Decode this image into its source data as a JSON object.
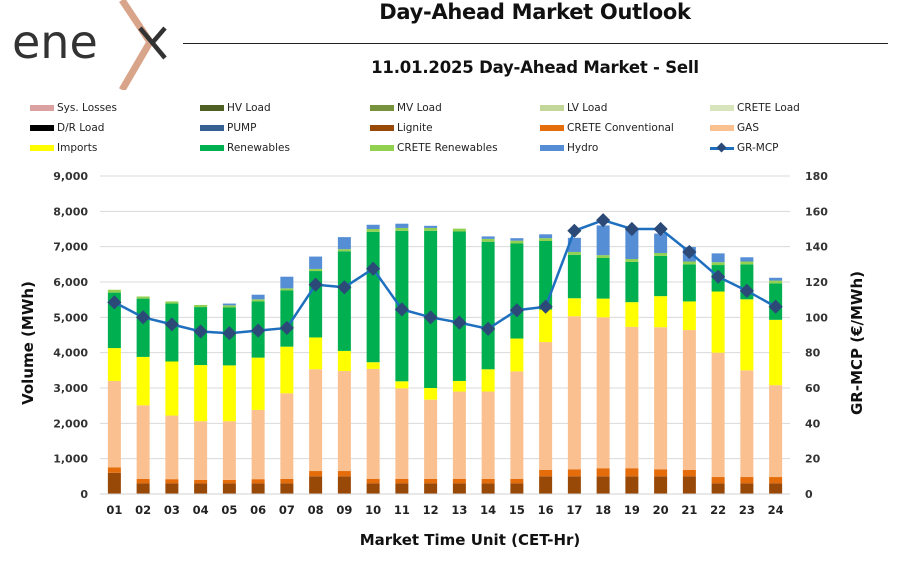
{
  "logo": {
    "text": "enex",
    "accent_color": "#d9a58a"
  },
  "header": {
    "title": "Day-Ahead Market Outlook",
    "subtitle": "11.01.2025  Day-Ahead Market - Sell"
  },
  "legend": [
    {
      "label": "Sys. Losses",
      "color": "#dba0a0",
      "kind": "bar"
    },
    {
      "label": "HV Load",
      "color": "#4e6024",
      "kind": "bar"
    },
    {
      "label": "MV Load",
      "color": "#76923c",
      "kind": "bar"
    },
    {
      "label": "LV Load",
      "color": "#c4d79b",
      "kind": "bar"
    },
    {
      "label": "CRETE Load",
      "color": "#d8e4bc",
      "kind": "bar"
    },
    {
      "label": "D/R Load",
      "color": "#000000",
      "kind": "bar"
    },
    {
      "label": "PUMP",
      "color": "#366092",
      "kind": "bar"
    },
    {
      "label": "Lignite",
      "color": "#984807",
      "kind": "bar"
    },
    {
      "label": "CRETE Conventional",
      "color": "#e46c0a",
      "kind": "bar"
    },
    {
      "label": "GAS",
      "color": "#fac090",
      "kind": "bar"
    },
    {
      "label": "Imports",
      "color": "#ffff00",
      "kind": "bar"
    },
    {
      "label": "Renewables",
      "color": "#00b050",
      "kind": "bar"
    },
    {
      "label": "CRETE Renewables",
      "color": "#92d050",
      "kind": "bar"
    },
    {
      "label": "Hydro",
      "color": "#558ed5",
      "kind": "bar"
    },
    {
      "label": "GR-MCP",
      "color": "#1f6fbf",
      "kind": "line"
    }
  ],
  "chart_data": {
    "type": "bar",
    "stacked": true,
    "title": "11.01.2025  Day-Ahead Market - Sell",
    "xlabel": "Market Time Unit (CET-Hr)",
    "ylabel": "Volume (MWh)",
    "y2label": "GR-MCP (€/MWh)",
    "ylim": [
      0,
      9000
    ],
    "y2lim": [
      0,
      180
    ],
    "yticks": [
      "0",
      "1,000",
      "2,000",
      "3,000",
      "4,000",
      "5,000",
      "6,000",
      "7,000",
      "8,000",
      "9,000"
    ],
    "y2ticks": [
      "0",
      "20",
      "40",
      "60",
      "80",
      "100",
      "120",
      "140",
      "160",
      "180"
    ],
    "grid": true,
    "legend_position": "top",
    "categories": [
      "01",
      "02",
      "03",
      "04",
      "05",
      "06",
      "07",
      "08",
      "09",
      "10",
      "11",
      "12",
      "13",
      "14",
      "15",
      "16",
      "17",
      "18",
      "19",
      "20",
      "21",
      "22",
      "23",
      "24"
    ],
    "series": [
      {
        "name": "Lignite",
        "color": "#984807",
        "values": [
          600,
          300,
          300,
          300,
          300,
          300,
          300,
          500,
          500,
          300,
          300,
          300,
          300,
          300,
          300,
          500,
          500,
          500,
          500,
          500,
          500,
          300,
          300,
          300
        ]
      },
      {
        "name": "CRETE Conventional",
        "color": "#e46c0a",
        "values": [
          150,
          130,
          120,
          100,
          100,
          120,
          130,
          150,
          150,
          130,
          130,
          130,
          130,
          130,
          130,
          180,
          200,
          230,
          230,
          200,
          180,
          180,
          180,
          180
        ]
      },
      {
        "name": "GAS",
        "color": "#fac090",
        "values": [
          2450,
          2080,
          1800,
          1660,
          1660,
          1960,
          2420,
          2880,
          2830,
          3110,
          2560,
          2240,
          2470,
          2470,
          3040,
          3620,
          4330,
          4270,
          4000,
          4020,
          3960,
          3520,
          3020,
          2600
        ]
      },
      {
        "name": "Imports",
        "color": "#ffff00",
        "values": [
          930,
          1370,
          1530,
          1590,
          1580,
          1480,
          1320,
          900,
          570,
          190,
          200,
          330,
          300,
          630,
          930,
          920,
          510,
          530,
          700,
          880,
          810,
          1730,
          2010,
          1850
        ]
      },
      {
        "name": "Renewables",
        "color": "#00b050",
        "values": [
          1570,
          1650,
          1640,
          1640,
          1640,
          1590,
          1590,
          1880,
          2820,
          3690,
          4260,
          4450,
          4230,
          3610,
          2690,
          1940,
          1230,
          1150,
          1140,
          1140,
          1050,
          750,
          990,
          1030
        ]
      },
      {
        "name": "CRETE Renewables",
        "color": "#92d050",
        "values": [
          80,
          60,
          60,
          60,
          60,
          60,
          60,
          60,
          60,
          80,
          80,
          80,
          80,
          80,
          80,
          80,
          80,
          80,
          80,
          80,
          80,
          80,
          80,
          80
        ]
      },
      {
        "name": "Hydro",
        "color": "#558ed5",
        "values": [
          0,
          0,
          0,
          0,
          50,
          130,
          330,
          350,
          340,
          120,
          120,
          60,
          0,
          70,
          70,
          110,
          400,
          840,
          840,
          550,
          410,
          250,
          120,
          80
        ]
      }
    ],
    "line_series": {
      "name": "GR-MCP",
      "axis": "right",
      "color": "#1f6fbf",
      "marker_color": "#2b4a78",
      "values": [
        108.5,
        100,
        96,
        92,
        91,
        92.5,
        94,
        118.5,
        117,
        127.5,
        104.5,
        100,
        97,
        93.5,
        104,
        106,
        149,
        155,
        150,
        150,
        137,
        123,
        115,
        106
      ]
    }
  }
}
